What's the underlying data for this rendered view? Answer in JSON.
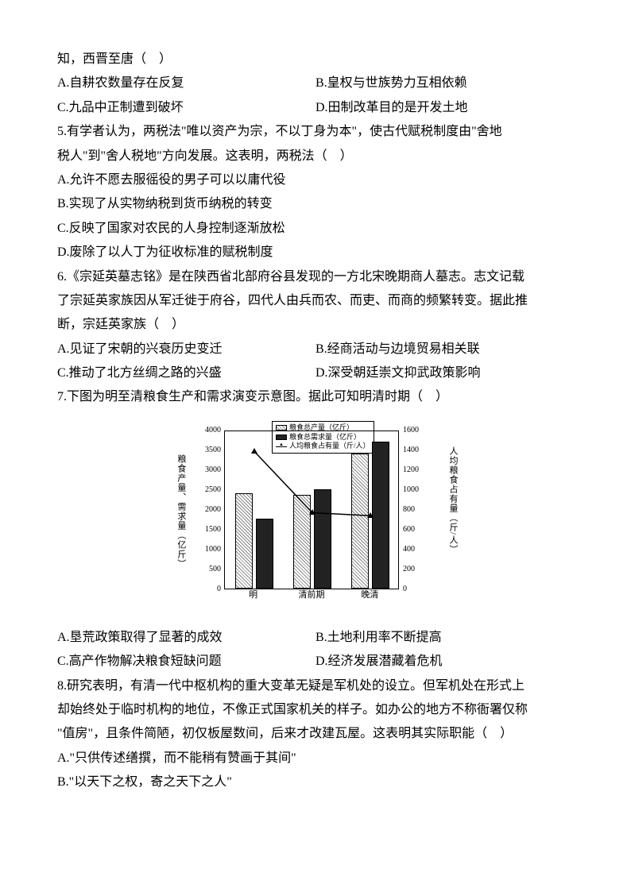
{
  "q4_tail": {
    "line1": "知，西晋至唐（　）"
  },
  "q4_options": {
    "a": "A.自耕农数量存在反复",
    "b": "B.皇权与世族势力互相依赖",
    "c": "C.九品中正制遭到破坏",
    "d": "D.田制改革目的是开发土地"
  },
  "q5": {
    "stem1": "5.有学者认为，两税法\"唯以资产为宗，不以丁身为本\"，使古代赋税制度由\"舍地",
    "stem2": "税人\"到\"舍人税地\"方向发展。这表明，两税法（　）",
    "a": "A.允许不愿去服徭役的男子可以以庸代役",
    "b": "B.实现了从实物纳税到货币纳税的转变",
    "c": "C.反映了国家对农民的人身控制逐渐放松",
    "d": "D.废除了以人丁为征收标准的赋税制度"
  },
  "q6": {
    "stem1": "6.《宗延英墓志铭》是在陕西省北部府谷县发现的一方北宋晚期商人墓志。志文记载",
    "stem2": "了宗延英家族因从军迁徙于府谷，四代人由兵而农、而吏、而商的频繁转变。据此推",
    "stem3": "断，宗廷英家族（　）",
    "a": "A.见证了宋朝的兴衰历史变迁",
    "b": "B.经商活动与边境贸易相关联",
    "c": "C.推动了北方丝绸之路的兴盛",
    "d": "D.深受朝廷崇文抑武政策影响"
  },
  "q7": {
    "stem": "7.下图为明至清粮食生产和需求演变示意图。据此可知明清时期（　）",
    "a": "A.垦荒政策取得了显著的成效",
    "b": "B.土地利用率不断提高",
    "c": "C.高产作物解决粮食短缺问题",
    "d": "D.经济发展潜藏着危机"
  },
  "q8": {
    "stem1": "8.研究表明，有清一代中枢机构的重大变革无疑是军机处的设立。但军机处在形式上",
    "stem2": "却始终处于临时机构的地位，不像正式国家机关的样子。如办公的地方不称衙署仅称",
    "stem3": "\"值房\"，且条件简陋，初仅板屋数间，后来才改建瓦屋。这表明其实际职能（　）",
    "a": "A.\"只供传述缮撰，而不能稍有赞画于其间\"",
    "b": "B.\"以天下之权，寄之天下之人\""
  },
  "chart": {
    "type": "bar+line",
    "left_axis_label": "粮食产量、需求量（亿斤）",
    "right_axis_label": "人均粮食占有量（斤/人）",
    "left_ticks": [
      0,
      500,
      1000,
      1500,
      2000,
      2500,
      3000,
      3500,
      4000
    ],
    "right_ticks": [
      0,
      200,
      400,
      600,
      800,
      1000,
      1200,
      1400,
      1600
    ],
    "left_max": 4000,
    "right_max": 1600,
    "categories": [
      "明",
      "清前期",
      "晚清"
    ],
    "legend": {
      "prod": "粮食总产量（亿斤）",
      "demand": "粮食总需求量（亿斤）",
      "percap": "人均粮食占有量（斤/人）"
    },
    "production": [
      2400,
      2350,
      3400
    ],
    "demand": [
      1750,
      2500,
      3700
    ],
    "per_capita": [
      1400,
      780,
      750
    ],
    "bar_border": "#000000",
    "light_fill": "#ffffff",
    "dark_fill": "#222222",
    "line_color": "#000000",
    "title_fontsize": 11
  }
}
